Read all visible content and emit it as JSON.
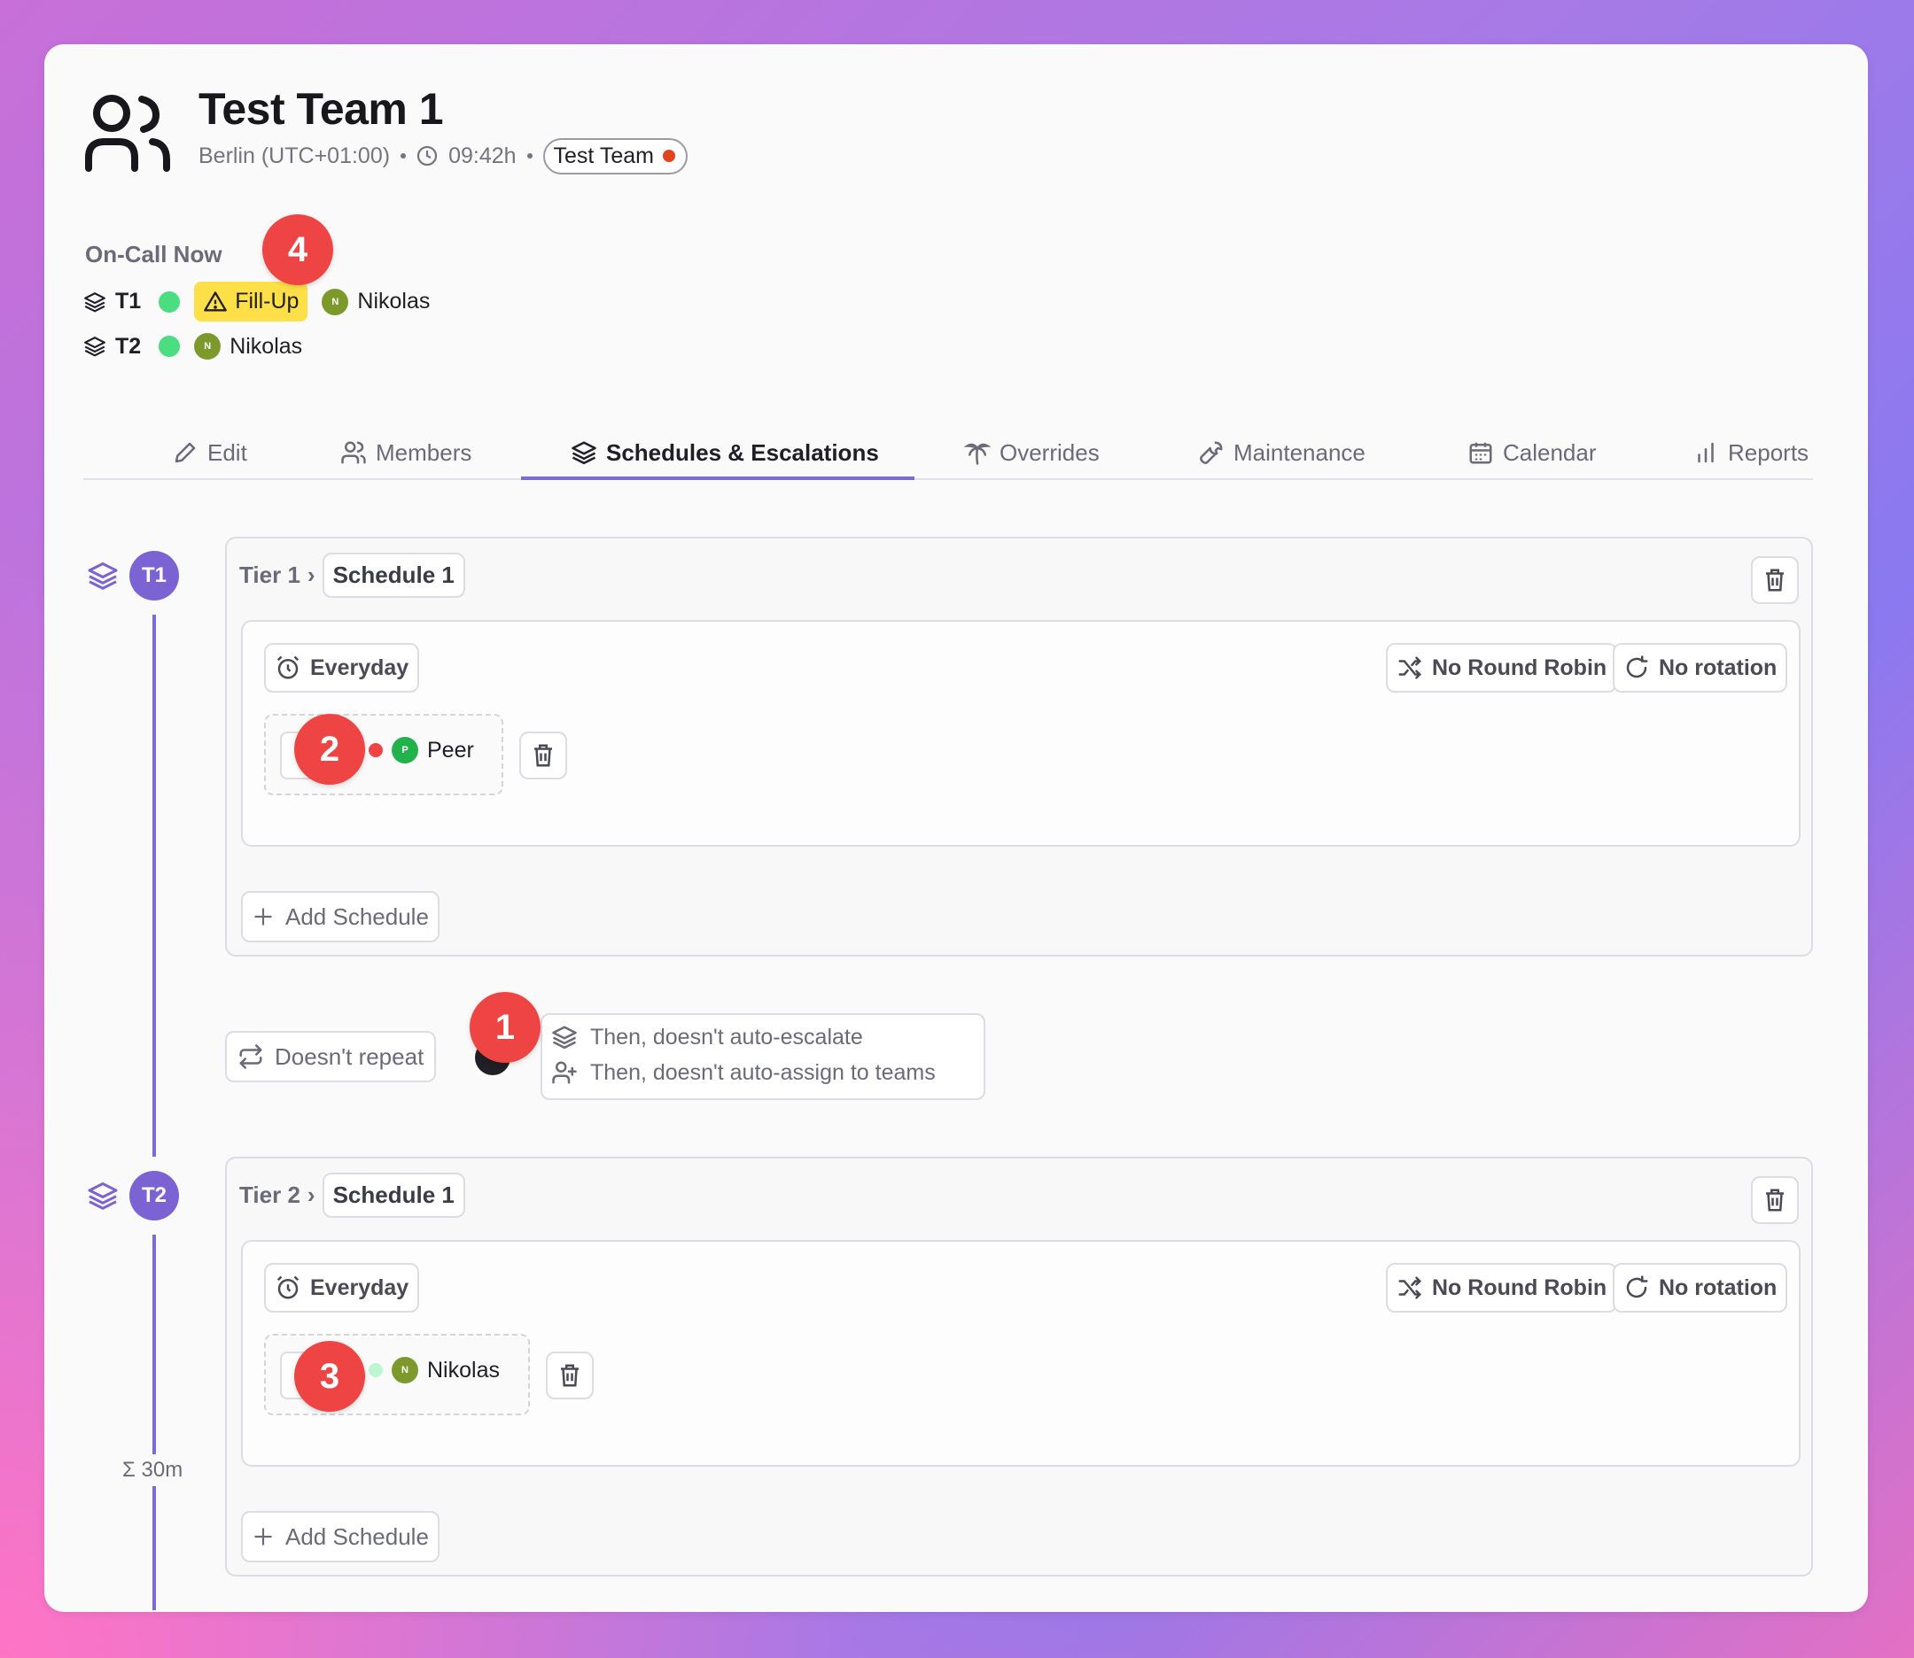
{
  "header": {
    "title": "Test Team 1",
    "timezone": "Berlin (UTC+01:00)",
    "local_time": "09:42h",
    "team_badge": "Test Team"
  },
  "oncall": {
    "label": "On-Call Now",
    "rows": [
      {
        "tier": "T1",
        "warning": "Fill-Up",
        "member": "Nikolas",
        "initial": "N"
      },
      {
        "tier": "T2",
        "member": "Nikolas",
        "initial": "N"
      }
    ]
  },
  "tabs": [
    {
      "label": "Edit",
      "icon": "pencil-icon"
    },
    {
      "label": "Members",
      "icon": "users-icon"
    },
    {
      "label": "Schedules & Escalations",
      "icon": "layers-icon",
      "active": true
    },
    {
      "label": "Overrides",
      "icon": "palm-tree-icon"
    },
    {
      "label": "Maintenance",
      "icon": "wrench-icon"
    },
    {
      "label": "Calendar",
      "icon": "calendar-icon"
    },
    {
      "label": "Reports",
      "icon": "bar-chart-icon"
    }
  ],
  "tiers": [
    {
      "badge": "T1",
      "tier_label": "Tier 1",
      "schedule_label": "Schedule 1",
      "day_label": "Everyday",
      "round_robin": "No Round Robin",
      "rotation": "No rotation",
      "member": {
        "name": "Peer",
        "initial": "P"
      },
      "add_label": "Add Schedule"
    },
    {
      "badge": "T2",
      "tier_label": "Tier 2",
      "schedule_label": "Schedule 1",
      "day_label": "Everyday",
      "round_robin": "No Round Robin",
      "rotation": "No rotation",
      "member": {
        "name": "Nikolas",
        "initial": "N"
      },
      "add_label": "Add Schedule"
    }
  ],
  "escalation": {
    "repeat_label": "Doesn't repeat",
    "line1": "Then, doesn't auto-escalate",
    "line2": "Then, doesn't auto-assign to teams"
  },
  "timeline": {
    "sum_label": "Σ 30m"
  },
  "markers": [
    "1",
    "2",
    "3",
    "4"
  ],
  "colors": {
    "accent": "#7b63d4",
    "fillup": "#fde047",
    "status_green": "#4ade80",
    "marker": "#ef4444"
  }
}
